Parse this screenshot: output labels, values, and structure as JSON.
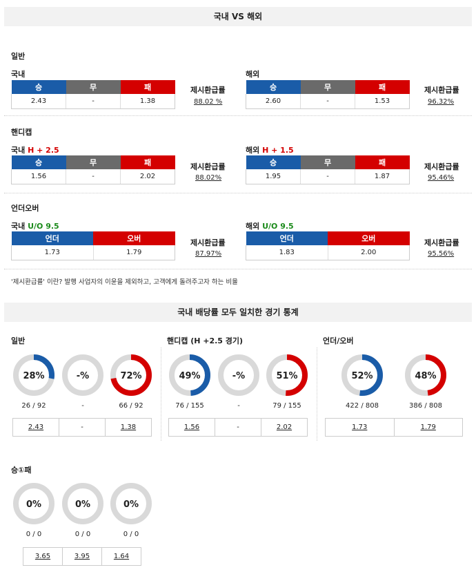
{
  "header": {
    "title": "국내 VS 해외"
  },
  "general": {
    "title": "일반",
    "domestic": {
      "label": "국내",
      "headers": [
        "승",
        "무",
        "패"
      ],
      "values": [
        "2.43",
        "-",
        "1.38"
      ],
      "rate_label": "제시환급률",
      "rate": "88.02 %"
    },
    "overseas": {
      "label": "해외",
      "headers": [
        "승",
        "무",
        "패"
      ],
      "values": [
        "2.60",
        "-",
        "1.53"
      ],
      "rate_label": "제시환급률",
      "rate": "96.32%"
    }
  },
  "handicap": {
    "title": "핸디캡",
    "domestic": {
      "label": "국내",
      "line": "H + 2.5",
      "headers": [
        "승",
        "무",
        "패"
      ],
      "values": [
        "1.56",
        "-",
        "2.02"
      ],
      "rate_label": "제시환급률",
      "rate": "88.02%"
    },
    "overseas": {
      "label": "해외",
      "line": "H + 1.5",
      "headers": [
        "승",
        "무",
        "패"
      ],
      "values": [
        "1.95",
        "-",
        "1.87"
      ],
      "rate_label": "제시환급률",
      "rate": "95.46%"
    }
  },
  "underover": {
    "title": "언더오버",
    "domestic": {
      "label": "국내",
      "line": "U/O 9.5",
      "headers": [
        "언더",
        "오버"
      ],
      "values": [
        "1.73",
        "1.79"
      ],
      "rate_label": "제시환급률",
      "rate": "87.97%"
    },
    "overseas": {
      "label": "해외",
      "line": "U/O 9.5",
      "headers": [
        "언더",
        "오버"
      ],
      "values": [
        "1.83",
        "2.00"
      ],
      "rate_label": "제시환급률",
      "rate": "95.56%"
    }
  },
  "note": "'제시환급률' 이란? 발행 사업자의 이윤을 제외하고, 고객에게 돌려주고자 하는 비율",
  "stats": {
    "title": "국내 배당률 모두 일치한 경기 통계",
    "general": {
      "title": "일반",
      "donuts": [
        {
          "pct": 28,
          "label": "28%",
          "count": "26 / 92",
          "color": "#1a5ca8"
        },
        {
          "pct": 0,
          "label": "-%",
          "count": "-",
          "color": "#888888"
        },
        {
          "pct": 72,
          "label": "72%",
          "count": "66 / 92",
          "color": "#d40000"
        }
      ],
      "odds": [
        "2.43",
        "-",
        "1.38"
      ]
    },
    "handicap": {
      "title": "핸디캡 (H +2.5 경기)",
      "donuts": [
        {
          "pct": 49,
          "label": "49%",
          "count": "76 / 155",
          "color": "#1a5ca8"
        },
        {
          "pct": 0,
          "label": "-%",
          "count": "-",
          "color": "#888888"
        },
        {
          "pct": 51,
          "label": "51%",
          "count": "79 / 155",
          "color": "#d40000"
        }
      ],
      "odds": [
        "1.56",
        "-",
        "2.02"
      ]
    },
    "underover": {
      "title": "언더/오버",
      "donuts": [
        {
          "pct": 52,
          "label": "52%",
          "count": "422 / 808",
          "color": "#1a5ca8"
        },
        {
          "pct": 48,
          "label": "48%",
          "count": "386 / 808",
          "color": "#d40000"
        }
      ],
      "odds": [
        "1.73",
        "1.79"
      ]
    },
    "win1loss": {
      "title": "승①패",
      "donuts": [
        {
          "pct": 0,
          "label": "0%",
          "count": "0 / 0",
          "color": "#1a5ca8"
        },
        {
          "pct": 0,
          "label": "0%",
          "count": "0 / 0",
          "color": "#888888"
        },
        {
          "pct": 0,
          "label": "0%",
          "count": "0 / 0",
          "color": "#d40000"
        }
      ],
      "odds": [
        "3.65",
        "3.95",
        "1.64"
      ]
    }
  }
}
